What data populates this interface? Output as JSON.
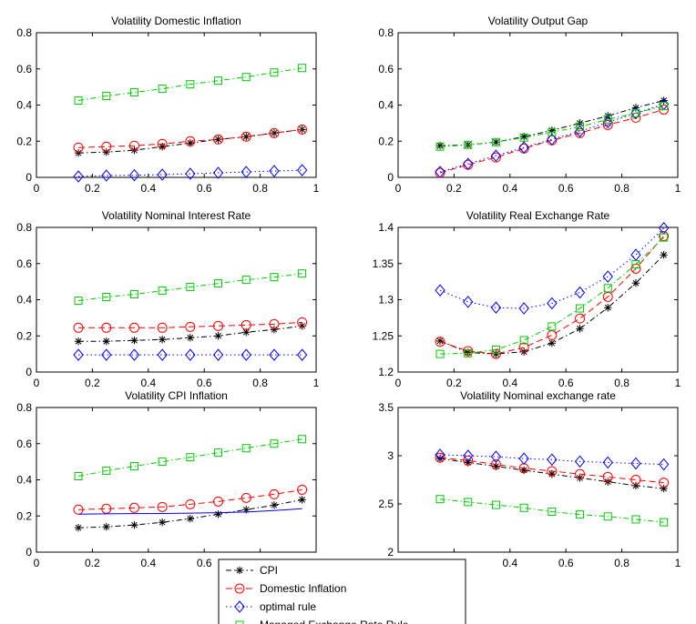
{
  "chart_data": [
    {
      "type": "line",
      "title": "Volatility Domestic Inflation",
      "xlim": [
        0,
        1
      ],
      "ylim": [
        0,
        0.8
      ],
      "xticks": [
        0,
        0.2,
        0.4,
        0.6,
        0.8,
        1
      ],
      "yticks": [
        0,
        0.2,
        0.4,
        0.6,
        0.8
      ],
      "ytick_labels": [
        "0",
        "0.2",
        "0.4",
        "0.6",
        "0.8"
      ],
      "x": [
        0.15,
        0.25,
        0.35,
        0.45,
        0.55,
        0.65,
        0.75,
        0.85,
        0.95
      ],
      "series": [
        {
          "key": "cpi",
          "values": [
            0.135,
            0.14,
            0.15,
            0.17,
            0.19,
            0.21,
            0.225,
            0.245,
            0.265
          ]
        },
        {
          "key": "dom",
          "values": [
            0.165,
            0.17,
            0.175,
            0.185,
            0.2,
            0.21,
            0.225,
            0.245,
            0.265
          ]
        },
        {
          "key": "opt",
          "values": [
            0.005,
            0.01,
            0.012,
            0.015,
            0.02,
            0.025,
            0.03,
            0.035,
            0.04
          ]
        },
        {
          "key": "mer",
          "values": [
            0.425,
            0.45,
            0.47,
            0.49,
            0.515,
            0.535,
            0.555,
            0.58,
            0.605
          ]
        }
      ]
    },
    {
      "type": "line",
      "title": "Volatility Output Gap",
      "xlim": [
        0,
        1
      ],
      "ylim": [
        0,
        0.8
      ],
      "xticks": [
        0,
        0.2,
        0.4,
        0.6,
        0.8,
        1
      ],
      "yticks": [
        0,
        0.2,
        0.4,
        0.6,
        0.8
      ],
      "ytick_labels": [
        "0",
        "0.2",
        "0.4",
        "0.6",
        "0.8"
      ],
      "x": [
        0.15,
        0.25,
        0.35,
        0.45,
        0.55,
        0.65,
        0.75,
        0.85,
        0.95
      ],
      "series": [
        {
          "key": "cpi",
          "values": [
            0.175,
            0.18,
            0.195,
            0.225,
            0.26,
            0.3,
            0.34,
            0.385,
            0.425
          ]
        },
        {
          "key": "dom",
          "values": [
            0.025,
            0.07,
            0.11,
            0.16,
            0.205,
            0.245,
            0.29,
            0.33,
            0.375
          ]
        },
        {
          "key": "opt",
          "values": [
            0.03,
            0.075,
            0.12,
            0.165,
            0.21,
            0.255,
            0.305,
            0.355,
            0.405
          ]
        },
        {
          "key": "mer",
          "values": [
            0.17,
            0.18,
            0.195,
            0.22,
            0.25,
            0.28,
            0.32,
            0.355,
            0.395
          ]
        }
      ]
    },
    {
      "type": "line",
      "title": "Volatility Nominal Interest Rate",
      "xlim": [
        0,
        1
      ],
      "ylim": [
        0,
        0.8
      ],
      "xticks": [
        0,
        0.2,
        0.4,
        0.6,
        0.8,
        1
      ],
      "yticks": [
        0,
        0.2,
        0.4,
        0.6,
        0.8
      ],
      "ytick_labels": [
        "0",
        "0.2",
        "0.4",
        "0.6",
        "0.8"
      ],
      "x": [
        0.15,
        0.25,
        0.35,
        0.45,
        0.55,
        0.65,
        0.75,
        0.85,
        0.95
      ],
      "series": [
        {
          "key": "cpi",
          "values": [
            0.17,
            0.17,
            0.175,
            0.18,
            0.19,
            0.2,
            0.22,
            0.235,
            0.255
          ]
        },
        {
          "key": "dom",
          "values": [
            0.245,
            0.245,
            0.245,
            0.245,
            0.25,
            0.255,
            0.26,
            0.265,
            0.275
          ]
        },
        {
          "key": "opt",
          "values": [
            0.095,
            0.095,
            0.095,
            0.095,
            0.095,
            0.095,
            0.095,
            0.095,
            0.095
          ]
        },
        {
          "key": "mer",
          "values": [
            0.395,
            0.415,
            0.43,
            0.45,
            0.47,
            0.49,
            0.51,
            0.525,
            0.545
          ]
        }
      ]
    },
    {
      "type": "line",
      "title": "Volatility Real Exchange Rate",
      "xlim": [
        0,
        1
      ],
      "ylim": [
        1.2,
        1.4
      ],
      "xticks": [
        0,
        0.2,
        0.4,
        0.6,
        0.8,
        1
      ],
      "yticks": [
        1.2,
        1.25,
        1.3,
        1.35,
        1.4
      ],
      "ytick_labels": [
        "1.2",
        "1.25",
        "1.3",
        "1.35",
        "1.4"
      ],
      "x": [
        0.15,
        0.25,
        0.35,
        0.45,
        0.55,
        0.65,
        0.75,
        0.85,
        0.95
      ],
      "series": [
        {
          "key": "cpi",
          "values": [
            1.243,
            1.227,
            1.225,
            1.228,
            1.24,
            1.26,
            1.289,
            1.323,
            1.362
          ]
        },
        {
          "key": "dom",
          "values": [
            1.242,
            1.229,
            1.225,
            1.234,
            1.251,
            1.274,
            1.304,
            1.343,
            1.388
          ]
        },
        {
          "key": "opt",
          "values": [
            1.313,
            1.297,
            1.289,
            1.288,
            1.295,
            1.31,
            1.332,
            1.362,
            1.399
          ]
        },
        {
          "key": "mer",
          "values": [
            1.225,
            1.226,
            1.231,
            1.244,
            1.263,
            1.288,
            1.316,
            1.349,
            1.386
          ]
        }
      ]
    },
    {
      "type": "line",
      "title": "Volatility CPI Inflation",
      "xlim": [
        0,
        1
      ],
      "ylim": [
        0,
        0.8
      ],
      "xticks": [
        0,
        0.2,
        0.4,
        0.6,
        0.8,
        1
      ],
      "yticks": [
        0,
        0.2,
        0.4,
        0.6,
        0.8
      ],
      "ytick_labels": [
        "0",
        "0.2",
        "0.4",
        "0.6",
        "0.8"
      ],
      "x": [
        0.15,
        0.25,
        0.35,
        0.45,
        0.55,
        0.65,
        0.75,
        0.85,
        0.95
      ],
      "series": [
        {
          "key": "cpi",
          "values": [
            0.135,
            0.14,
            0.15,
            0.165,
            0.185,
            0.21,
            0.235,
            0.26,
            0.29
          ]
        },
        {
          "key": "dom",
          "values": [
            0.235,
            0.24,
            0.245,
            0.25,
            0.265,
            0.28,
            0.3,
            0.32,
            0.345
          ]
        },
        {
          "key": "opt",
          "line_only": true,
          "values": [
            0.21,
            0.212,
            0.213,
            0.214,
            0.216,
            0.218,
            0.222,
            0.23,
            0.24
          ]
        },
        {
          "key": "mer",
          "values": [
            0.42,
            0.45,
            0.475,
            0.5,
            0.525,
            0.55,
            0.575,
            0.6,
            0.625
          ]
        }
      ]
    },
    {
      "type": "line",
      "title": "Volatility Nominal exchange rate",
      "xlim": [
        0,
        1
      ],
      "ylim": [
        2,
        3.5
      ],
      "xticks": [
        0,
        0.2,
        0.4,
        0.6,
        0.8,
        1
      ],
      "yticks": [
        2,
        2.5,
        3,
        3.5
      ],
      "ytick_labels": [
        "2",
        "2.5",
        "3",
        "3.5"
      ],
      "x": [
        0.15,
        0.25,
        0.35,
        0.45,
        0.55,
        0.65,
        0.75,
        0.85,
        0.95
      ],
      "series": [
        {
          "key": "cpi",
          "values": [
            2.97,
            2.93,
            2.89,
            2.85,
            2.81,
            2.77,
            2.73,
            2.69,
            2.66
          ]
        },
        {
          "key": "dom",
          "values": [
            2.98,
            2.95,
            2.91,
            2.87,
            2.84,
            2.81,
            2.78,
            2.75,
            2.72
          ]
        },
        {
          "key": "opt",
          "values": [
            3.01,
            3.0,
            2.99,
            2.97,
            2.96,
            2.94,
            2.93,
            2.92,
            2.91
          ]
        },
        {
          "key": "mer",
          "values": [
            2.55,
            2.52,
            2.49,
            2.46,
            2.42,
            2.39,
            2.37,
            2.34,
            2.31
          ]
        }
      ]
    }
  ],
  "styles": {
    "cpi": {
      "color": "#000000",
      "marker": "star",
      "dash": "6,3,1.5,3"
    },
    "dom": {
      "color": "#ff0000",
      "marker": "circle",
      "dash": "7,4"
    },
    "opt": {
      "color": "#0000ff",
      "marker": "diamond",
      "dash": "1.5,3"
    },
    "mer": {
      "color": "#00cc00",
      "marker": "square",
      "dash": "6,3,1.5,3"
    }
  },
  "legend": {
    "placement": "bottom-center",
    "entries": [
      {
        "key": "cpi",
        "label": "CPI"
      },
      {
        "key": "dom",
        "label": "Domestic Inflation"
      },
      {
        "key": "opt",
        "label": "optimal rule"
      },
      {
        "key": "mer",
        "label": "Managed Exchange Rate Rule"
      }
    ]
  }
}
